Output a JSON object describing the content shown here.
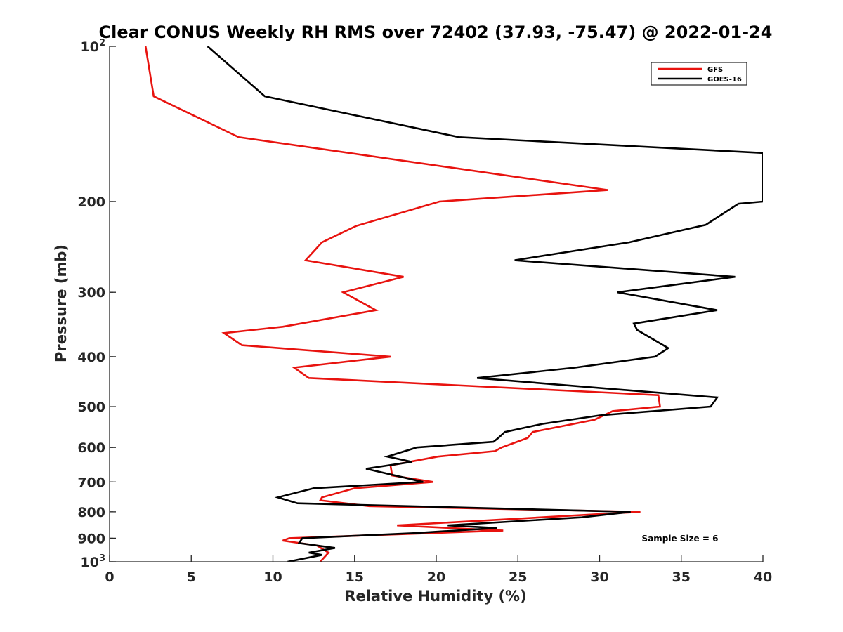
{
  "chart_data": {
    "type": "line",
    "title": "Clear CONUS Weekly RH RMS over 72402 (37.93, -75.47) @ 2022-01-24",
    "xlabel": "Relative Humidity (%)",
    "ylabel": "Pressure (mb)",
    "xlim": [
      0,
      40
    ],
    "ylim": [
      100,
      1000
    ],
    "yscale": "log",
    "y_reversed": true,
    "grid": false,
    "x_ticks": [
      "0",
      "5",
      "10",
      "15",
      "20",
      "25",
      "30",
      "35",
      "40"
    ],
    "y_ticks": [
      {
        "value": 100,
        "base": "10",
        "exp": "2"
      },
      {
        "value": 200,
        "label": "200"
      },
      {
        "value": 300,
        "label": "300"
      },
      {
        "value": 400,
        "label": "400"
      },
      {
        "value": 500,
        "label": "500"
      },
      {
        "value": 600,
        "label": "600"
      },
      {
        "value": 700,
        "label": "700"
      },
      {
        "value": 800,
        "label": "800"
      },
      {
        "value": 900,
        "label": "900"
      },
      {
        "value": 1000,
        "base": "10",
        "exp": "3"
      }
    ],
    "legend": {
      "location": "top-right"
    },
    "annotation": "Sample Size = 6",
    "series": [
      {
        "name": "GFS",
        "color": "#e8130f",
        "points": [
          [
            2.2,
            100
          ],
          [
            2.7,
            125
          ],
          [
            7.9,
            150
          ],
          [
            30.5,
            190
          ],
          [
            20.2,
            200
          ],
          [
            15.1,
            223
          ],
          [
            13.0,
            240
          ],
          [
            12.0,
            260
          ],
          [
            18.0,
            280
          ],
          [
            14.3,
            300
          ],
          [
            16.3,
            325
          ],
          [
            10.6,
            350
          ],
          [
            7.0,
            360
          ],
          [
            8.1,
            380
          ],
          [
            17.2,
            400
          ],
          [
            11.3,
            420
          ],
          [
            12.2,
            440
          ],
          [
            33.6,
            475
          ],
          [
            33.7,
            500
          ],
          [
            30.8,
            510
          ],
          [
            29.7,
            530
          ],
          [
            25.9,
            560
          ],
          [
            25.6,
            575
          ],
          [
            24.0,
            600
          ],
          [
            23.6,
            610
          ],
          [
            20.1,
            625
          ],
          [
            17.2,
            650
          ],
          [
            17.3,
            680
          ],
          [
            19.8,
            700
          ],
          [
            15.0,
            720
          ],
          [
            13.0,
            750
          ],
          [
            12.9,
            760
          ],
          [
            15.9,
            780
          ],
          [
            32.5,
            800
          ],
          [
            17.6,
            850
          ],
          [
            24.1,
            870
          ],
          [
            11.0,
            900
          ],
          [
            10.6,
            910
          ],
          [
            12.7,
            930
          ],
          [
            13.4,
            960
          ],
          [
            12.9,
            1000
          ]
        ]
      },
      {
        "name": "GOES-16",
        "color": "#000000",
        "points": [
          [
            6.0,
            100
          ],
          [
            9.5,
            125
          ],
          [
            21.4,
            150
          ],
          [
            40.0,
            161
          ],
          [
            40.0,
            200
          ],
          [
            38.5,
            202
          ],
          [
            36.5,
            222
          ],
          [
            31.8,
            240
          ],
          [
            24.8,
            260
          ],
          [
            38.3,
            280
          ],
          [
            31.1,
            300
          ],
          [
            37.2,
            325
          ],
          [
            32.1,
            345
          ],
          [
            32.3,
            355
          ],
          [
            34.2,
            385
          ],
          [
            33.4,
            400
          ],
          [
            28.5,
            420
          ],
          [
            22.5,
            440
          ],
          [
            37.2,
            480
          ],
          [
            36.8,
            500
          ],
          [
            30.0,
            520
          ],
          [
            26.5,
            540
          ],
          [
            24.2,
            560
          ],
          [
            23.8,
            575
          ],
          [
            23.5,
            585
          ],
          [
            18.8,
            600
          ],
          [
            17.0,
            625
          ],
          [
            18.5,
            640
          ],
          [
            15.7,
            660
          ],
          [
            19.2,
            700
          ],
          [
            12.5,
            720
          ],
          [
            10.3,
            750
          ],
          [
            11.5,
            770
          ],
          [
            31.9,
            800
          ],
          [
            28.9,
            820
          ],
          [
            20.7,
            850
          ],
          [
            23.7,
            860
          ],
          [
            18.6,
            880
          ],
          [
            11.8,
            900
          ],
          [
            11.6,
            920
          ],
          [
            13.8,
            940
          ],
          [
            12.2,
            960
          ],
          [
            13.0,
            970
          ],
          [
            10.9,
            1000
          ]
        ]
      }
    ]
  }
}
